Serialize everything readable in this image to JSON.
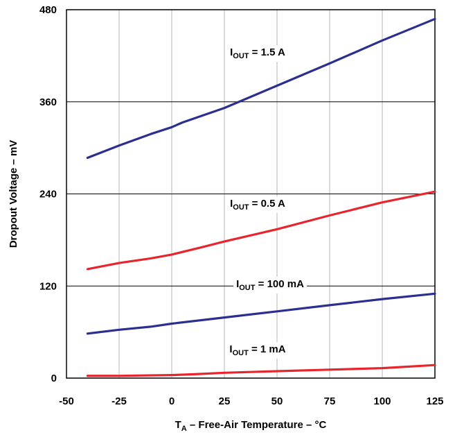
{
  "chart_data": {
    "type": "line",
    "title": "",
    "xlabel": {
      "main": "T",
      "sub": "A",
      "rest": " – Free-Air Temperature – °C"
    },
    "ylabel": "Dropout Voltage – mV",
    "xlim": [
      -50,
      125
    ],
    "ylim": [
      0,
      480
    ],
    "x_ticks": [
      -50,
      -25,
      0,
      25,
      50,
      75,
      100,
      125
    ],
    "y_ticks": [
      0,
      120,
      240,
      360,
      480
    ],
    "grid": true,
    "legend": "none",
    "series": [
      {
        "name": {
          "main": "I",
          "sub": "OUT",
          "rest": " = 1.5 A"
        },
        "color": "#2b2f8f",
        "x": [
          -40,
          -25,
          -10,
          0,
          5,
          25,
          50,
          75,
          100,
          125
        ],
        "y": [
          287,
          303,
          318,
          327,
          333,
          352,
          381,
          410,
          440,
          468
        ]
      },
      {
        "name": {
          "main": "I",
          "sub": "OUT",
          "rest": " = 0.5 A"
        },
        "color": "#e8242c",
        "x": [
          -40,
          -25,
          -10,
          0,
          15,
          25,
          50,
          75,
          100,
          125
        ],
        "y": [
          142,
          150,
          156,
          161,
          171,
          178,
          194,
          212,
          229,
          243
        ]
      },
      {
        "name": {
          "main": "I",
          "sub": "OUT",
          "rest": " = 100 mA"
        },
        "color": "#2b2f8f",
        "x": [
          -40,
          -25,
          -10,
          0,
          25,
          50,
          75,
          100,
          125
        ],
        "y": [
          58,
          63,
          67,
          71,
          79,
          87,
          95,
          103,
          110
        ]
      },
      {
        "name": {
          "main": "I",
          "sub": "OUT",
          "rest": " = 1 mA"
        },
        "color": "#e8242c",
        "x": [
          -40,
          -25,
          0,
          10,
          25,
          50,
          75,
          100,
          125
        ],
        "y": [
          3,
          3,
          4,
          5,
          7,
          9,
          11,
          13,
          17
        ]
      }
    ]
  }
}
